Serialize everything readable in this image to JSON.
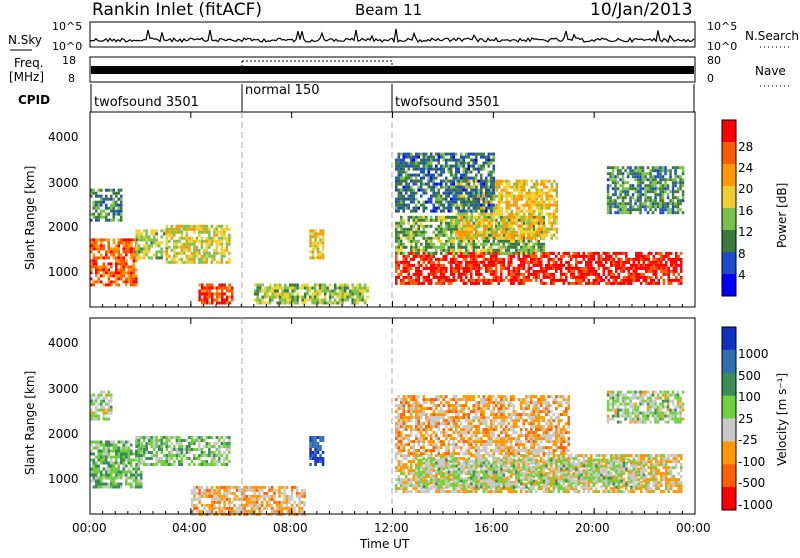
{
  "header": {
    "title": "Rankin Inlet (fitACF)",
    "beam": "Beam 11",
    "date": "10/Jan/2013"
  },
  "noise_panel": {
    "left_label": "N.Sky",
    "right_label": "N.Search",
    "ticks_left": [
      "10^5",
      "10^0"
    ],
    "ticks_right": [
      "10^5",
      "10^0"
    ]
  },
  "freq_panel": {
    "left_label_1": "Freq.",
    "left_label_2": "[MHz]",
    "right_label": "Nave",
    "ticks_left": [
      "18",
      "8"
    ],
    "ticks_right": [
      "80",
      "0"
    ]
  },
  "cpid": {
    "label": "CPID",
    "segments": [
      {
        "text": "twofsound 3501",
        "start_hr": 0,
        "end_hr": 6
      },
      {
        "text": "normal 150",
        "start_hr": 6,
        "end_hr": 12
      },
      {
        "text": "twofsound 3501",
        "start_hr": 12,
        "end_hr": 24
      }
    ]
  },
  "x_axis": {
    "label": "Time UT",
    "ticks": [
      "00:00",
      "04:00",
      "08:00",
      "12:00",
      "16:00",
      "20:00",
      "00:00"
    ],
    "tick_hours": [
      0,
      4,
      8,
      12,
      16,
      20,
      24
    ]
  },
  "power_panel": {
    "ylabel": "Slant Range [km]",
    "yticks": [
      "1000",
      "2000",
      "3000",
      "4000"
    ],
    "colorbar_label": "Power [dB]",
    "colorbar_ticks": [
      "28",
      "24",
      "20",
      "16",
      "12",
      "8",
      "4"
    ],
    "colors": [
      "#0000ff",
      "#1c4cc8",
      "#3c7a3c",
      "#7bc04a",
      "#f0d030",
      "#ff9900",
      "#ff5a00",
      "#ff0000"
    ]
  },
  "velocity_panel": {
    "ylabel": "Slant Range [km]",
    "yticks": [
      "1000",
      "2000",
      "3000",
      "4000"
    ],
    "colorbar_label": "Velocity [m s⁻¹]",
    "colorbar_ticks": [
      "1000",
      "500",
      "100",
      "25",
      "-25",
      "-100",
      "-500",
      "-1000"
    ],
    "colors": [
      "#1030c0",
      "#2f6fb0",
      "#3c8c5a",
      "#6fcf3c",
      "#c8c8c8",
      "#ff9900",
      "#ff6000",
      "#ff0000"
    ]
  },
  "chart_data": [
    {
      "type": "heatmap",
      "title": "Power [dB]",
      "xlabel": "Time UT",
      "ylabel": "Slant Range [km]",
      "xlim": [
        0,
        24
      ],
      "ylim": [
        180,
        4500
      ],
      "color_range": [
        0,
        30
      ],
      "regions": [
        {
          "t0": 0.0,
          "t1": 1.8,
          "r0": 700,
          "r1": 1700,
          "value": 24
        },
        {
          "t0": 0.0,
          "t1": 1.2,
          "r0": 2100,
          "r1": 2800,
          "value": 10
        },
        {
          "t0": 1.8,
          "t1": 3.0,
          "r0": 1300,
          "r1": 1900,
          "value": 14
        },
        {
          "t0": 3.0,
          "t1": 5.5,
          "r0": 1200,
          "r1": 2000,
          "value": 16
        },
        {
          "t0": 4.3,
          "t1": 5.6,
          "r0": 300,
          "r1": 700,
          "value": 26
        },
        {
          "t0": 8.7,
          "t1": 9.2,
          "r0": 1300,
          "r1": 1900,
          "value": 18
        },
        {
          "t0": 6.5,
          "t1": 11.0,
          "r0": 300,
          "r1": 700,
          "value": 14
        },
        {
          "t0": 12.1,
          "t1": 23.5,
          "r0": 700,
          "r1": 1400,
          "value": 28
        },
        {
          "t0": 12.1,
          "t1": 18.0,
          "r0": 1400,
          "r1": 2200,
          "value": 12
        },
        {
          "t0": 14.5,
          "t1": 18.5,
          "r0": 1700,
          "r1": 3000,
          "value": 18
        },
        {
          "t0": 12.1,
          "t1": 16.0,
          "r0": 2300,
          "r1": 3600,
          "value": 8
        },
        {
          "t0": 20.5,
          "t1": 23.5,
          "r0": 2300,
          "r1": 3300,
          "value": 10
        }
      ]
    },
    {
      "type": "heatmap",
      "title": "Velocity [m s⁻¹]",
      "xlabel": "Time UT",
      "ylabel": "Slant Range [km]",
      "xlim": [
        0,
        24
      ],
      "ylim": [
        180,
        4500
      ],
      "color_range": [
        -1000,
        1000
      ],
      "regions": [
        {
          "t0": 0.0,
          "t1": 2.0,
          "r0": 800,
          "r1": 1800,
          "value": 200
        },
        {
          "t0": 0.0,
          "t1": 0.8,
          "r0": 2300,
          "r1": 2900,
          "value": 0
        },
        {
          "t0": 1.8,
          "t1": 3.0,
          "r0": 1300,
          "r1": 1900,
          "value": 150
        },
        {
          "t0": 3.0,
          "t1": 5.5,
          "r0": 1300,
          "r1": 1900,
          "value": 120
        },
        {
          "t0": 4.0,
          "t1": 8.5,
          "r0": 200,
          "r1": 800,
          "value": -300
        },
        {
          "t0": 8.7,
          "t1": 9.2,
          "r0": 1300,
          "r1": 1900,
          "value": 800
        },
        {
          "t0": 12.1,
          "t1": 23.5,
          "r0": 700,
          "r1": 1500,
          "value": -200
        },
        {
          "t0": 13.0,
          "t1": 22.0,
          "r0": 800,
          "r1": 1400,
          "value": 0
        },
        {
          "t0": 12.1,
          "t1": 19.0,
          "r0": 1500,
          "r1": 2800,
          "value": -300
        },
        {
          "t0": 20.5,
          "t1": 23.5,
          "r0": 2200,
          "r1": 2900,
          "value": 0
        }
      ]
    }
  ]
}
